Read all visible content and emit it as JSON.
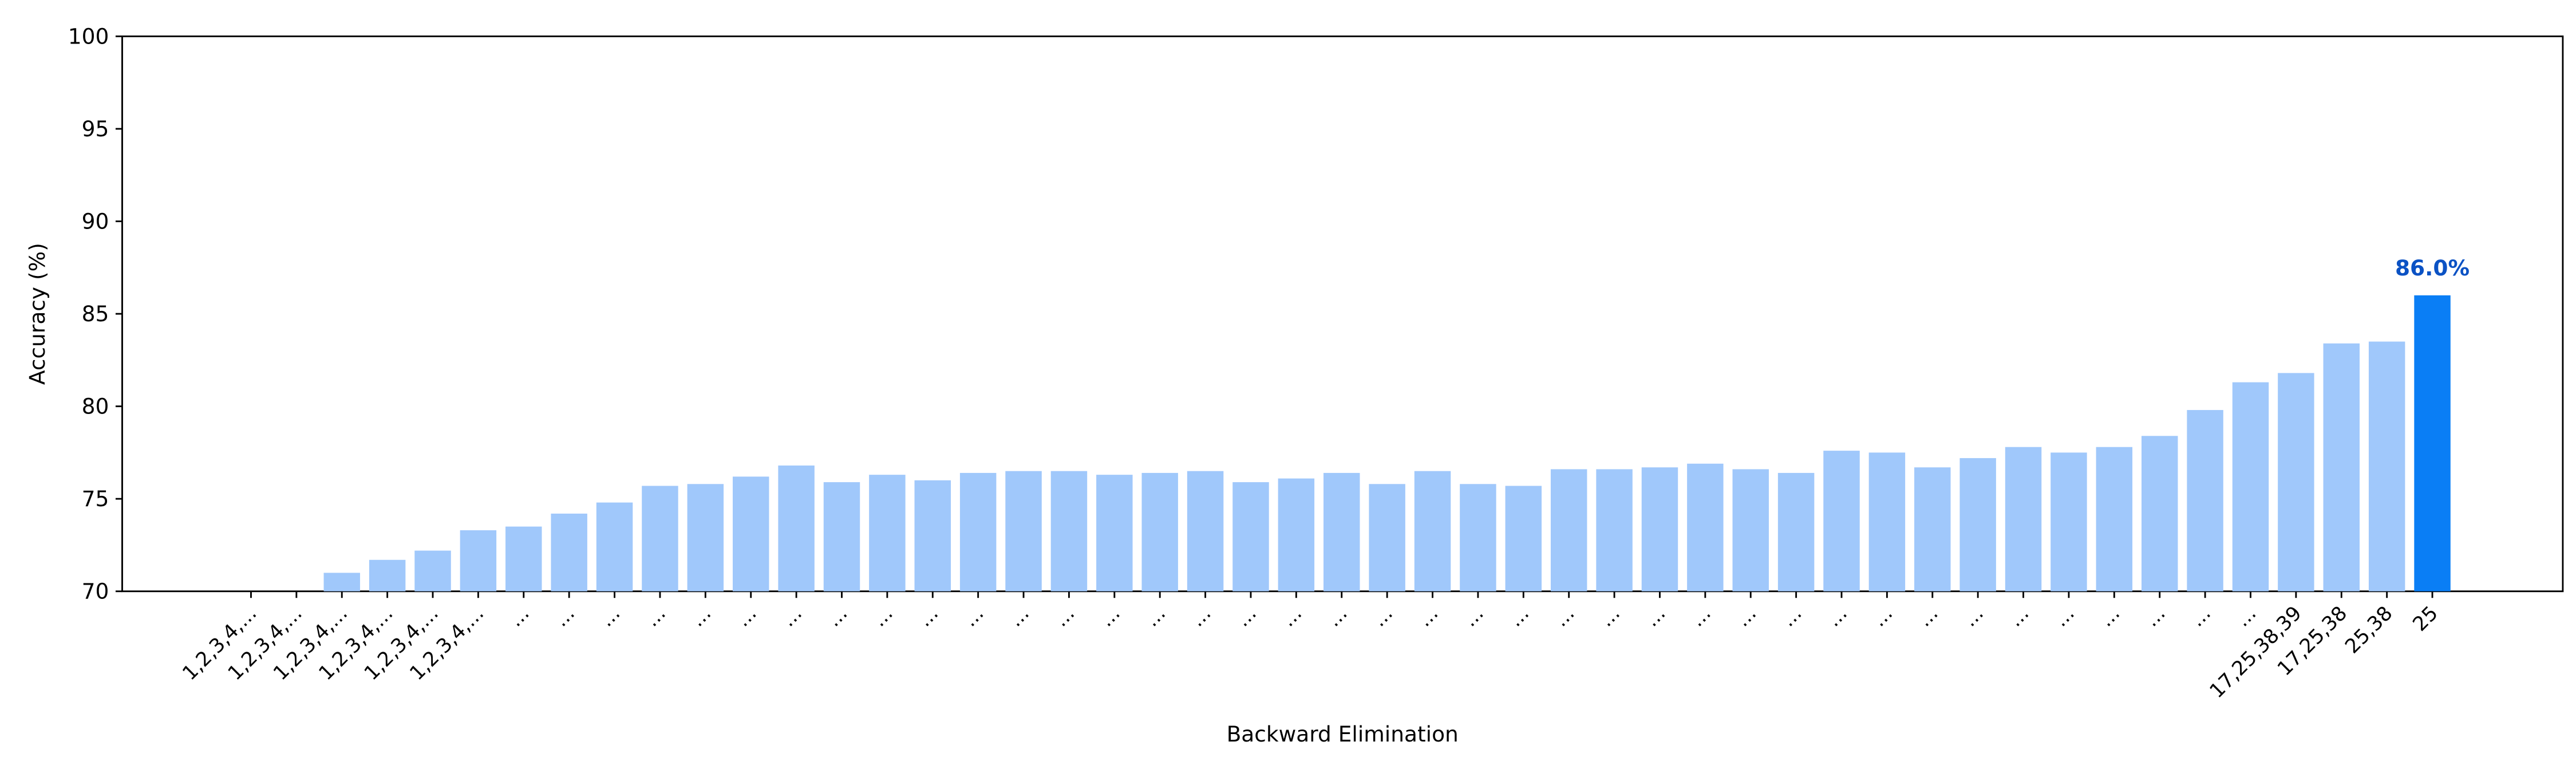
{
  "chart_data": {
    "type": "bar",
    "x_label": "Backward Elimination",
    "y_label": "Accuracy (%)",
    "categories": [
      "1,2,3,4,...",
      "1,2,3,4,...",
      "1,2,3,4,...",
      "1,2,3,4,...",
      "1,2,3,4,...",
      "1,2,3,4,...",
      "...",
      "...",
      "...",
      "...",
      "...",
      "...",
      "...",
      "...",
      "...",
      "...",
      "...",
      "...",
      "...",
      "...",
      "...",
      "...",
      "...",
      "...",
      "...",
      "...",
      "...",
      "...",
      "...",
      "...",
      "...",
      "...",
      "...",
      "...",
      "...",
      "...",
      "...",
      "...",
      "...",
      "...",
      "...",
      "...",
      "...",
      "...",
      "...",
      "17,25,38,39",
      "17,25,38",
      "25,38",
      "25"
    ],
    "values": [
      70.0,
      70.0,
      71.0,
      71.7,
      72.2,
      73.3,
      73.5,
      74.2,
      74.8,
      75.7,
      75.8,
      76.2,
      76.8,
      75.9,
      76.3,
      76.0,
      76.4,
      76.5,
      76.5,
      76.3,
      76.4,
      76.5,
      75.9,
      76.1,
      76.4,
      75.8,
      76.5,
      75.8,
      75.7,
      76.6,
      76.6,
      76.7,
      76.9,
      76.6,
      76.4,
      77.6,
      77.5,
      76.7,
      77.2,
      77.8,
      77.5,
      77.8,
      78.4,
      79.8,
      81.3,
      81.8,
      83.4,
      83.5,
      86.0
    ],
    "value_labels": [
      null,
      null,
      null,
      null,
      null,
      null,
      null,
      null,
      null,
      null,
      null,
      null,
      null,
      null,
      null,
      null,
      null,
      null,
      null,
      null,
      null,
      null,
      null,
      null,
      null,
      null,
      null,
      null,
      null,
      null,
      null,
      null,
      null,
      null,
      null,
      null,
      null,
      null,
      null,
      null,
      null,
      null,
      null,
      null,
      null,
      null,
      null,
      null,
      "86.0%"
    ],
    "color": "#a0c8fb",
    "highlight_color": "#0a7ef5",
    "label_color": "#0b52c4",
    "ylim": [
      70,
      100
    ],
    "yticks": [
      70,
      75,
      80,
      85,
      90,
      95,
      100
    ]
  }
}
